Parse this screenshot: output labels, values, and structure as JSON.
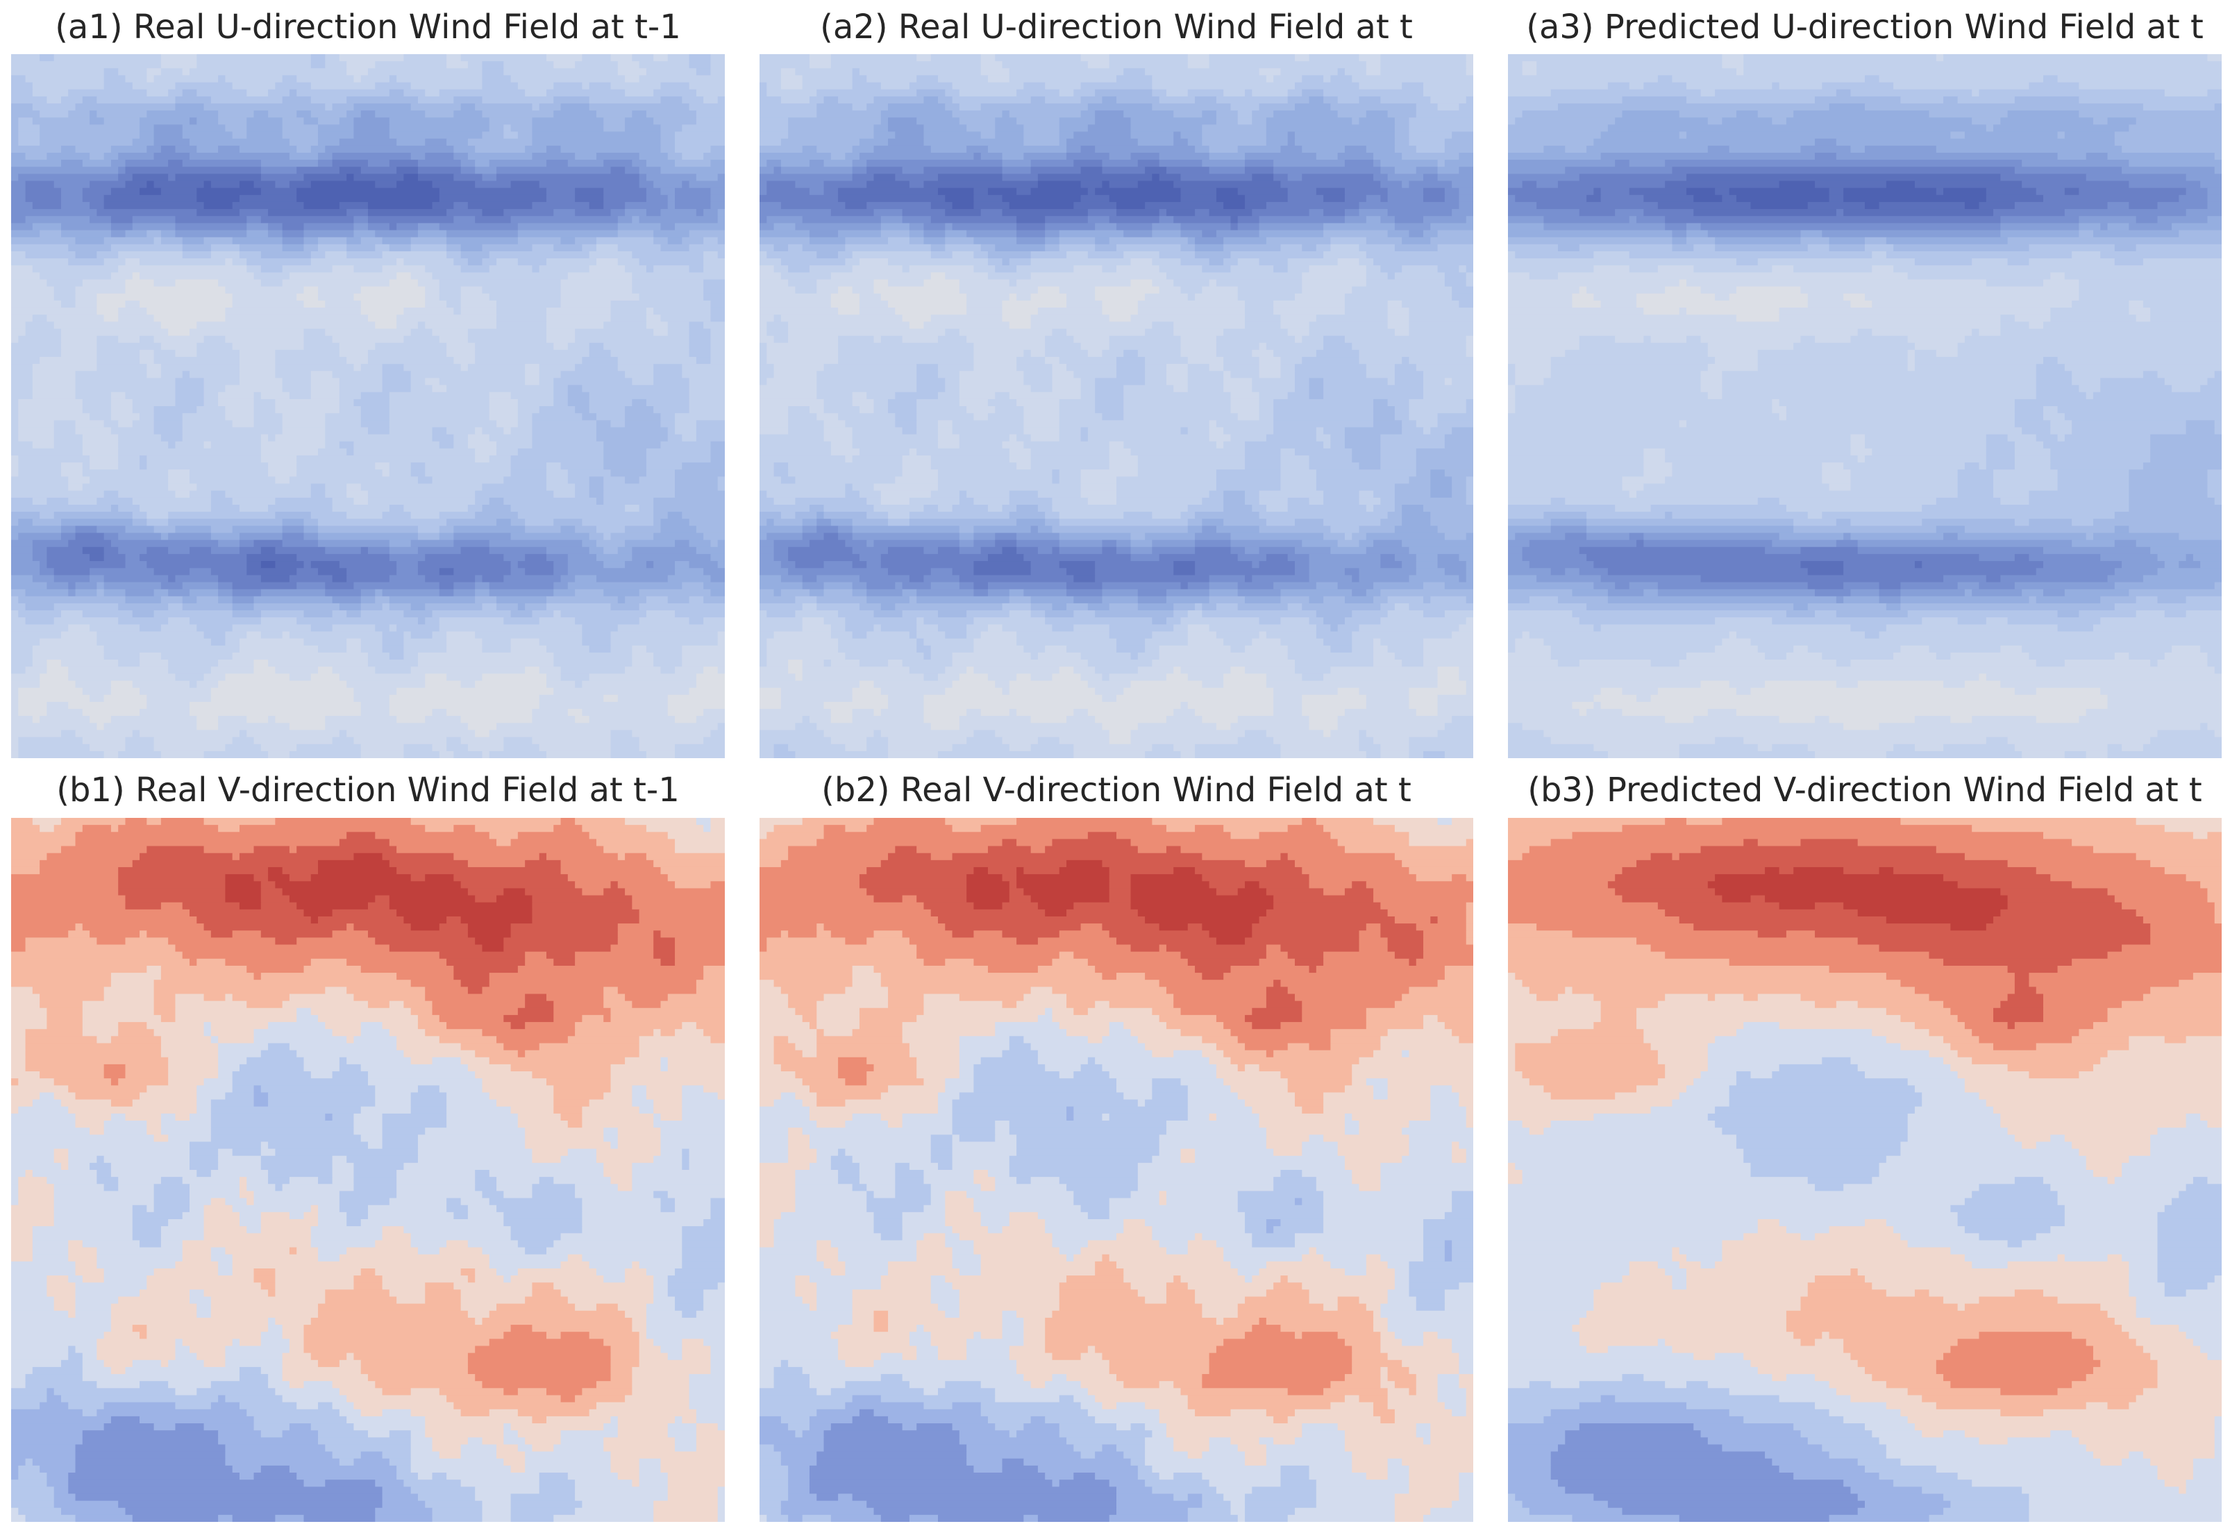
{
  "chart_data": [
    {
      "type": "heatmap",
      "id": "a1",
      "title": "(a1) Real U-direction Wind Field at t-1",
      "colormap": "coolwarm",
      "field": "u",
      "variant": 0
    },
    {
      "type": "heatmap",
      "id": "a2",
      "title": "(a2) Real U-direction Wind Field at t",
      "colormap": "coolwarm",
      "field": "u",
      "variant": 1
    },
    {
      "type": "heatmap",
      "id": "a3",
      "title": "(a3) Predicted U-direction Wind Field at t",
      "colormap": "coolwarm",
      "field": "u",
      "variant": 2
    },
    {
      "type": "heatmap",
      "id": "b1",
      "title": "(b1) Real V-direction Wind Field at t-1",
      "colormap": "coolwarm",
      "field": "v",
      "variant": 0
    },
    {
      "type": "heatmap",
      "id": "b2",
      "title": "(b2) Real V-direction Wind Field at t",
      "colormap": "coolwarm",
      "field": "v",
      "variant": 1
    },
    {
      "type": "heatmap",
      "id": "b3",
      "title": "(b3) Predicted V-direction Wind Field at t",
      "colormap": "coolwarm",
      "field": "v",
      "variant": 2
    }
  ],
  "colors": {
    "u_levels": [
      "#dcdfe6",
      "#cfd9ec",
      "#c2d1ec",
      "#b3c6ea",
      "#a4bae5",
      "#95aee0",
      "#869fd8",
      "#7890d0",
      "#6a80c6",
      "#5b70bb",
      "#4e62b2"
    ],
    "v_levels": [
      "#7f95d6",
      "#9db3e6",
      "#b5c8ec",
      "#d3dcee",
      "#f0d8ce",
      "#f6b9a1",
      "#ec8c74",
      "#d35c50",
      "#c0403c"
    ]
  }
}
